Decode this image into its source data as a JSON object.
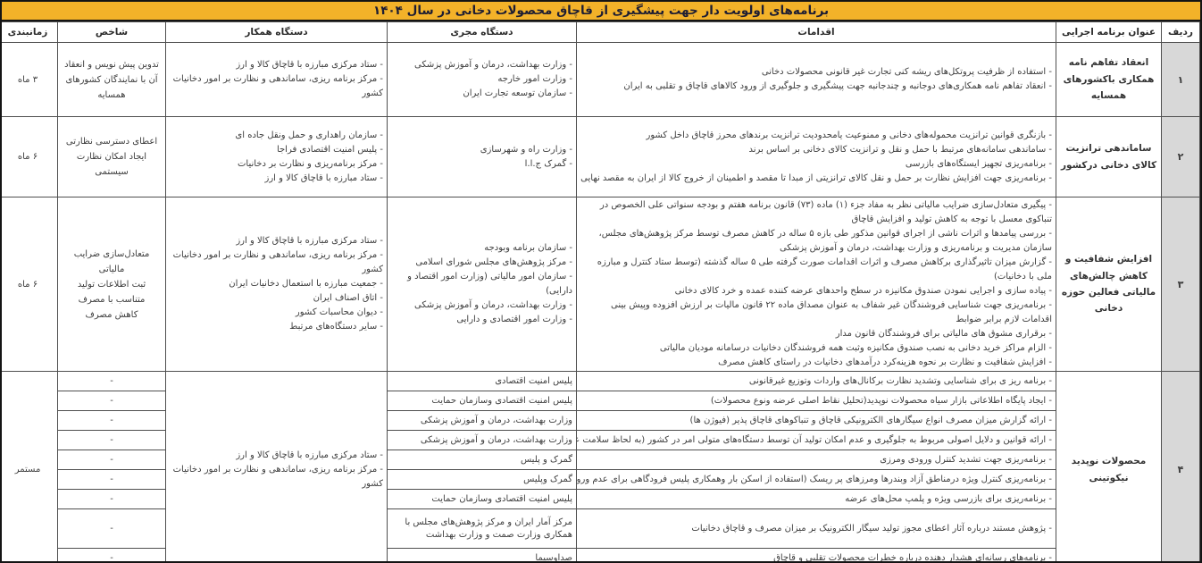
{
  "title": "برنامه‌های اولویت دار جهت پیشگیری از قاچاق محصولات دخانی در سال ۱۴۰۴",
  "columns": [
    "ردیف",
    "عنوان برنامه اجرایی",
    "اقدامات",
    "دستگاه مجری",
    "دستگاه همکار",
    "شاخص",
    "زمانبندی"
  ],
  "rows": [
    {
      "num": "۱",
      "title": "انعقاد تفاهم نامه همکاری باکشورهای همسایه",
      "actions": [
        "استفاده از ظرفیت پروتکل‌های ریشه کنی تجارت غیر قانونی محصولات دخانی",
        "انعقاد تفاهم نامه همکاری‌های دوجانبه و چندجانبه جهت پیشگیری و جلوگیری از ورود کالاهای قاچاق و تقلبی به ایران"
      ],
      "executor": [
        "وزارت بهداشت، درمان و آموزش پزشکی",
        "وزارت امور خارجه",
        "سازمان توسعه تجارت ایران"
      ],
      "partner": [
        "ستاد مرکزی مبارزه با قاچاق کالا و ارز",
        "مرکز برنامه ریزی، ساماندهی و نظارت بر امور دخانیات کشور"
      ],
      "indicator": [
        "تدوین پیش نویس و انعقاد آن با نمایندگان کشورهای همسایه"
      ],
      "timing": "۳ ماه"
    },
    {
      "num": "۲",
      "title": "ساماندهی ترانزیت کالای دخانی درکشور",
      "actions": [
        "بازنگری قوانین ترانزیت محموله‌های دخانی و ممنوعیت یامحدودیت ترانزیت برندهای محرز قاچاق داخل کشور",
        "ساماندهی سامانه‌های مرتبط با حمل و نقل و ترانزیت کالای دخانی بر اساس برند",
        "برنامه‌ریزی تجهیز ایستگاه‌های بازرسی",
        "برنامه‌ریزی جهت افزایش نظارت بر حمل و نقل کالای ترانزیتی از مبدا تا مقصد و اطمینان از خروج کالا از ایران به مقصد نهایی"
      ],
      "executor": [
        "وزارت راه و شهرسازی",
        "گمرک ج.ا.ا"
      ],
      "partner": [
        "سازمان راهداری و حمل ونقل جاده ای",
        "پلیس امنیت اقتصادی فراجا",
        "مرکز برنامه‌ریزی و نظارت بر دخانیات",
        "ستاد مبارزه با قاچاق کالا و ارز"
      ],
      "indicator": [
        "اعطای دسترسی نظارتی",
        "ایجاد امکان نظارت سیستمی"
      ],
      "timing": "۶ ماه"
    },
    {
      "num": "۳",
      "title": "افزایش شفافیت و کاهش چالش‌های مالیاتی فعالین حوزه دخانی",
      "actions": [
        "پیگیری متعادل‌سازی ضرایب مالیاتی نظر به مفاد جزء (۱) ماده (۷۳) قانون برنامه هفتم و بودجه سنواتی علی الخصوص در تنباکوی معسل با توجه به کاهش تولید و افزایش قاچاق",
        "بررسی پیامدها و اثرات ناشی از اجرای قوانین مذکور طی بازه ۵ ساله در کاهش مصرف توسط مرکز پژوهش‌های مجلس، سازمان مدیریت و برنامه‌ریزی و وزارت بهداشت، درمان و آموزش پزشکی",
        "گزارش میزان تاثیرگذاری برکاهش مصرف و اثرات اقدامات صورت گرفته طی ۵ ساله گذشته (توسط ستاد کنترل و مبارزه ملی با دخانیات)",
        "پیاده سازی و اجرایی نمودن صندوق مکانیزه در سطح واحدهای عرضه کننده عمده و خرد کالای دخانی",
        "برنامه‌ریزی جهت شناسایی فروشندگان غیر شفاف به عنوان مصداق ماده ۲۲ قانون مالیات بر ارزش افزوده وپیش بینی اقدامات لازم برابر ضوابط",
        "برقراری مشوق های مالیاتی برای فروشندگان قانون مدار",
        "الزام مراکز خرید دخانی به نصب صندوق مکانیزه وثبت همه فروشندگان دخانیات درسامانه مودیان مالیاتی",
        "افزایش شفافیت و نظارت بر نحوه هزینه‌کرد درآمدهای دخانیات در راستای کاهش مصرف"
      ],
      "executor": [
        "سازمان برنامه وبودجه",
        "مرکز پژوهش‌های مجلس شورای اسلامی",
        "سازمان امور مالیاتی (وزارت امور اقتصاد و دارایی)",
        "وزارت بهداشت، درمان و آموزش پزشکی",
        "وزارت امور اقتصادی و دارایی"
      ],
      "partner": [
        "ستاد مرکزی مبارزه با قاچاق کالا و ارز",
        "مرکز برنامه ریزی، ساماندهی و نظارت بر امور دخانیات کشور",
        "جمعیت مبارزه با استعمال دخانیات ایران",
        "اتاق اصناف ایران",
        "دیوان محاسبات کشور",
        "سایر دستگاه‌های مرتبط"
      ],
      "indicator": [
        "متعادل‌سازی ضرایب مالیاتی",
        "ثبت اطلاعات تولید متناسب با مصرف",
        "کاهش مصرف"
      ],
      "timing": "۶ ماه"
    },
    {
      "num": "۴",
      "title": "محصولات نوپدید نیکوتینی",
      "actions": [
        "برنامه ریز ی برای شناسایی وتشدید نظارت برکانال‌های واردات وتوزیع غیرقانونی",
        "ایجاد پایگاه اطلاعاتی بازار سیاه محصولات نوپدید(تحلیل نقاط اصلی عرضه ونوع محصولات)",
        "ارائه گزارش میزان مصرف انواع سیگارهای الکترونیکی قاچاق و تنباکوهای قاچاق پذیر (فیوژن ها)",
        "ارائه قوانین و دلایل اصولی مربوط به جلوگیری و عدم امکان تولید آن توسط دستگاه‌های متولی امر در کشور (به لحاظ سلامت عمومی واقتصادی)",
        "برنامه‌ریزی جهت تشدید کنترل ورودی ومرزی",
        "برنامه‌ریزی کنترل ویژه درمناطق آزاد وبندرها ومرزهای پر ریسک (استفاده از اسکن بار وهمکاری پلیس فرودگاهی برای عدم ورود چمدانی و...)",
        "برنامه‌ریزی برای بازرسی ویژه و پلمپ محل‌های عرضه",
        "پژوهش مستند درباره آثار اعطای مجوز تولید سیگار الکترونیک بر میزان مصرف و قاچاق دخانیات",
        "برنامه‌های رسانه‌ای هشدار دهنده درباره خطرات محصولات تقلبی و قاچاق"
      ],
      "executors": [
        "پلیس امنیت اقتصادی",
        "پلیس امنیت اقتصادی وسازمان حمایت",
        "وزارت بهداشت، درمان و آموزش پزشکی",
        "وزارت بهداشت، درمان و آموزش پزشکی",
        "گمرک و پلیس",
        "گمرک وپلیس",
        "پلیس امنیت اقتصادی وسازمان حمایت",
        "مرکز آمار ایران و مرکز پژوهش‌های مجلس با همکاری وزارت صمت و وزارت بهداشت",
        "صداوسیما"
      ],
      "partner": [
        "ستاد مرکزی مبارزه با قاچاق کالا و ارز",
        "مرکز برنامه ریزی، ساماندهی و نظارت بر امور دخانیات کشور"
      ],
      "indicators": [
        "-",
        "-",
        "-",
        "-",
        "-",
        "-",
        "-",
        "-",
        "-"
      ],
      "timing": "مستمر"
    }
  ]
}
